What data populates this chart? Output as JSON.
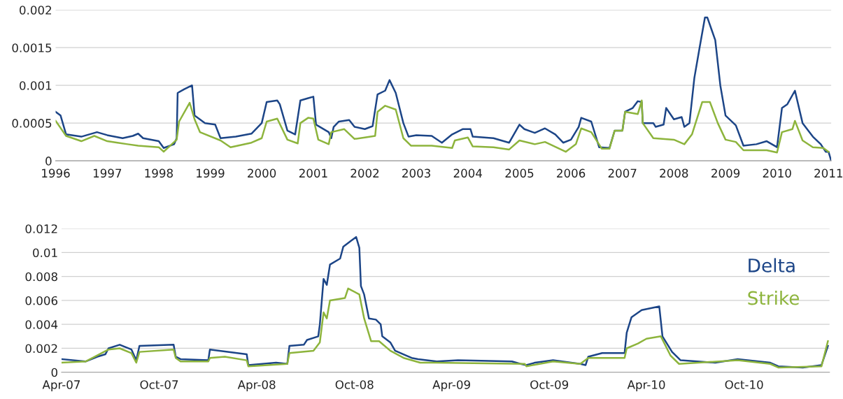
{
  "chart_data": [
    {
      "type": "line",
      "grid": "y",
      "legend": false,
      "xlim": [
        "1996-01-01",
        "2011-01-20"
      ],
      "ylim": [
        0,
        0.002
      ],
      "xticks": [
        {
          "value": "1996-01-01",
          "label": "1996"
        },
        {
          "value": "1997-01-01",
          "label": "1997"
        },
        {
          "value": "1998-01-01",
          "label": "1998"
        },
        {
          "value": "1999-01-01",
          "label": "1999"
        },
        {
          "value": "2000-01-01",
          "label": "2000"
        },
        {
          "value": "2001-01-01",
          "label": "2001"
        },
        {
          "value": "2002-01-01",
          "label": "2002"
        },
        {
          "value": "2003-01-01",
          "label": "2003"
        },
        {
          "value": "2004-01-01",
          "label": "2004"
        },
        {
          "value": "2005-01-01",
          "label": "2005"
        },
        {
          "value": "2006-01-01",
          "label": "2006"
        },
        {
          "value": "2007-01-01",
          "label": "2007"
        },
        {
          "value": "2008-01-01",
          "label": "2008"
        },
        {
          "value": "2009-01-01",
          "label": "2009"
        },
        {
          "value": "2010-01-01",
          "label": "2010"
        },
        {
          "value": "2011-01-01",
          "label": "2011"
        }
      ],
      "yticks": [
        0,
        0.0005,
        0.001,
        0.0015,
        0.002
      ],
      "series": [
        {
          "color": "#1c4587",
          "x": [
            "1996-01-01",
            "1996-02-05",
            "1996-03-15",
            "1996-07-01",
            "1996-10-20",
            "1997-01-01",
            "1997-04-20",
            "1997-07-01",
            "1997-08-08",
            "1997-09-12",
            "1998-01-01",
            "1998-02-05",
            "1998-04-20",
            "1998-05-08",
            "1998-05-15",
            "1998-07-01",
            "1998-08-25",
            "1998-09-12",
            "1998-11-25",
            "1999-02-05",
            "1999-03-15",
            "1999-07-01",
            "1999-10-20",
            "2000-01-01",
            "2000-02-05",
            "2000-04-20",
            "2000-05-08",
            "2000-07-01",
            "2000-08-25",
            "2000-10-01",
            "2000-11-25",
            "2001-01-01",
            "2001-01-20",
            "2001-04-20",
            "2001-05-08",
            "2001-05-25",
            "2001-07-01",
            "2001-09-12",
            "2001-10-20",
            "2002-01-01",
            "2002-02-25",
            "2002-04-01",
            "2002-05-25",
            "2002-06-25",
            "2002-08-08",
            "2002-10-01",
            "2002-11-07",
            "2003-01-01",
            "2003-04-20",
            "2003-07-01",
            "2003-09-12",
            "2003-11-25",
            "2004-01-20",
            "2004-02-05",
            "2004-07-01",
            "2004-10-20",
            "2005-01-01",
            "2005-02-05",
            "2005-04-20",
            "2005-07-01",
            "2005-09-12",
            "2005-11-07",
            "2006-01-01",
            "2006-02-25",
            "2006-03-15",
            "2006-05-25",
            "2006-07-20",
            "2006-10-01",
            "2006-11-07",
            "2007-01-01",
            "2007-01-20",
            "2007-03-15",
            "2007-04-20",
            "2007-05-18",
            "2007-05-25",
            "2007-08-08",
            "2007-08-25",
            "2007-10-20",
            "2007-11-07",
            "2008-01-01",
            "2008-02-25",
            "2008-03-15",
            "2008-04-20",
            "2008-05-25",
            "2008-07-01",
            "2008-08-08",
            "2008-08-25",
            "2008-10-20",
            "2008-11-25",
            "2009-01-01",
            "2009-03-15",
            "2009-05-08",
            "2009-08-08",
            "2009-10-20",
            "2010-01-01",
            "2010-02-05",
            "2010-03-15",
            "2010-05-08",
            "2010-07-01",
            "2010-09-12",
            "2010-11-07",
            "2010-12-12",
            "2011-01-01",
            "2011-01-20"
          ],
          "values": [
            0.00065,
            0.0006,
            0.00035,
            0.00032,
            0.00038,
            0.00034,
            0.0003,
            0.00033,
            0.00036,
            0.0003,
            0.00026,
            0.00017,
            0.00022,
            0.0003,
            0.0009,
            0.00095,
            0.001,
            0.0006,
            0.0005,
            0.00048,
            0.0003,
            0.00032,
            0.00036,
            0.0005,
            0.00078,
            0.0008,
            0.00075,
            0.0004,
            0.00035,
            0.0008,
            0.00083,
            0.00085,
            0.00048,
            0.00038,
            0.0003,
            0.00045,
            0.00052,
            0.00054,
            0.00045,
            0.00042,
            0.00046,
            0.00088,
            0.00093,
            0.00107,
            0.0009,
            0.0005,
            0.00032,
            0.00034,
            0.00033,
            0.00024,
            0.00035,
            0.00042,
            0.00042,
            0.00032,
            0.0003,
            0.00024,
            0.00048,
            0.00042,
            0.00037,
            0.00043,
            0.00035,
            0.00024,
            0.00028,
            0.00045,
            0.00057,
            0.00052,
            0.00018,
            0.00017,
            0.0004,
            0.0004,
            0.00065,
            0.0007,
            0.00079,
            0.00078,
            0.0005,
            0.0005,
            0.00045,
            0.00048,
            0.0007,
            0.00055,
            0.00058,
            0.00045,
            0.0005,
            0.0011,
            0.0015,
            0.0019,
            0.0019,
            0.0016,
            0.001,
            0.0006,
            0.00047,
            0.0002,
            0.00022,
            0.00026,
            0.00018,
            0.0007,
            0.00075,
            0.00093,
            0.0005,
            0.00032,
            0.00022,
            0.00012,
            0.00012,
            0
          ]
        },
        {
          "color": "#8db43c",
          "x": [
            "1996-01-01",
            "1996-03-15",
            "1996-07-01",
            "1996-10-01",
            "1997-01-01",
            "1997-03-15",
            "1997-05-25",
            "1997-08-08",
            "1998-01-01",
            "1998-02-05",
            "1998-05-08",
            "1998-05-25",
            "1998-08-08",
            "1998-09-12",
            "1998-10-20",
            "1999-03-15",
            "1999-05-25",
            "1999-10-20",
            "2000-01-01",
            "2000-02-05",
            "2000-04-20",
            "2000-07-01",
            "2000-09-12",
            "2000-10-01",
            "2000-11-25",
            "2001-01-01",
            "2001-02-05",
            "2001-04-20",
            "2001-05-08",
            "2001-08-08",
            "2001-10-20",
            "2002-01-01",
            "2002-03-15",
            "2002-04-01",
            "2002-05-25",
            "2002-08-08",
            "2002-10-01",
            "2002-11-25",
            "2003-04-20",
            "2003-09-12",
            "2003-10-01",
            "2004-01-01",
            "2004-02-05",
            "2004-07-01",
            "2004-10-20",
            "2005-01-01",
            "2005-04-20",
            "2005-07-01",
            "2005-11-25",
            "2006-02-05",
            "2006-03-15",
            "2006-05-25",
            "2006-08-08",
            "2006-10-01",
            "2006-11-07",
            "2007-01-01",
            "2007-01-20",
            "2007-04-20",
            "2007-05-18",
            "2007-05-25",
            "2007-08-08",
            "2008-01-01",
            "2008-03-15",
            "2008-05-08",
            "2008-07-20",
            "2008-09-12",
            "2008-11-07",
            "2009-01-01",
            "2009-03-15",
            "2009-05-08",
            "2009-10-20",
            "2010-01-01",
            "2010-02-05",
            "2010-04-20",
            "2010-05-08",
            "2010-07-01",
            "2010-09-12",
            "2010-11-25",
            "2011-01-01"
          ],
          "values": [
            0.00053,
            0.00033,
            0.00026,
            0.00033,
            0.00026,
            0.00024,
            0.00022,
            0.0002,
            0.00018,
            0.00012,
            0.00028,
            0.00052,
            0.00077,
            0.00055,
            0.00038,
            0.00027,
            0.00018,
            0.00024,
            0.0003,
            0.00052,
            0.00056,
            0.00028,
            0.00023,
            0.0005,
            0.00057,
            0.00056,
            0.00028,
            0.00022,
            0.00038,
            0.00042,
            0.00029,
            0.00031,
            0.00033,
            0.00065,
            0.00073,
            0.00068,
            0.0003,
            0.0002,
            0.0002,
            0.00017,
            0.00027,
            0.00031,
            0.00019,
            0.00018,
            0.00015,
            0.00027,
            0.00022,
            0.00025,
            0.00012,
            0.00022,
            0.00043,
            0.00038,
            0.00016,
            0.00016,
            0.0004,
            0.0004,
            0.00065,
            0.00062,
            0.0008,
            0.0005,
            0.0003,
            0.00028,
            0.00022,
            0.00035,
            0.00078,
            0.00078,
            0.0005,
            0.00028,
            0.00025,
            0.00014,
            0.00014,
            0.00011,
            0.00038,
            0.00042,
            0.00053,
            0.00027,
            0.00018,
            0.00017,
            0.00012
          ]
        }
      ]
    },
    {
      "type": "line",
      "grid": "y",
      "legend": "top right",
      "xlim": [
        "2007-04-01",
        "2011-03-10"
      ],
      "ylim": [
        0,
        0.012
      ],
      "xticks": [
        {
          "value": "2007-04-01",
          "label": "Apr-07"
        },
        {
          "value": "2007-10-01",
          "label": "Oct-07"
        },
        {
          "value": "2008-04-01",
          "label": "Apr-08"
        },
        {
          "value": "2008-10-01",
          "label": "Oct-08"
        },
        {
          "value": "2009-04-01",
          "label": "Apr-09"
        },
        {
          "value": "2009-10-01",
          "label": "Oct-09"
        },
        {
          "value": "2010-04-01",
          "label": "Apr-10"
        },
        {
          "value": "2010-10-01",
          "label": "Oct-10"
        }
      ],
      "yticks": [
        0,
        0.002,
        0.004,
        0.006,
        0.008,
        0.01,
        0.012
      ],
      "series": [
        {
          "name": "Delta",
          "color": "#1c4587",
          "x": [
            "2007-04-01",
            "2007-05-16",
            "2007-06-07",
            "2007-06-22",
            "2007-06-28",
            "2007-07-19",
            "2007-08-10",
            "2007-08-19",
            "2007-08-25",
            "2007-10-28",
            "2007-11-01",
            "2007-11-10",
            "2008-01-01",
            "2008-01-04",
            "2008-03-13",
            "2008-03-16",
            "2008-05-07",
            "2008-05-28",
            "2008-06-01",
            "2008-06-28",
            "2008-07-04",
            "2008-07-25",
            "2008-07-28",
            "2008-08-04",
            "2008-08-10",
            "2008-08-16",
            "2008-09-04",
            "2008-09-10",
            "2008-09-25",
            "2008-10-04",
            "2008-10-10",
            "2008-10-13",
            "2008-10-19",
            "2008-10-28",
            "2008-11-10",
            "2008-11-19",
            "2008-11-22",
            "2008-12-07",
            "2008-12-16",
            "2009-01-16",
            "2009-01-28",
            "2009-03-04",
            "2009-04-13",
            "2009-07-23",
            "2009-08-08",
            "2009-08-19",
            "2009-09-04",
            "2009-10-08",
            "2009-11-28",
            "2009-12-08",
            "2009-12-13",
            "2010-01-08",
            "2010-02-19",
            "2010-02-23",
            "2010-03-04",
            "2010-03-23",
            "2010-04-25",
            "2010-05-01",
            "2010-05-19",
            "2010-06-04",
            "2010-08-08",
            "2010-09-19",
            "2010-11-19",
            "2010-12-04",
            "2011-01-19",
            "2011-02-23",
            "2011-03-07"
          ],
          "values": [
            0.0011,
            0.0009,
            0.0013,
            0.0015,
            0.002,
            0.0023,
            0.0019,
            0.001,
            0.0022,
            0.0023,
            0.0013,
            0.0011,
            0.001,
            0.0019,
            0.0015,
            0.0006,
            0.0008,
            0.0007,
            0.0022,
            0.0023,
            0.0027,
            0.003,
            0.004,
            0.0078,
            0.0073,
            0.009,
            0.0095,
            0.0105,
            0.011,
            0.0113,
            0.0104,
            0.0072,
            0.0065,
            0.0045,
            0.0044,
            0.004,
            0.003,
            0.0025,
            0.0018,
            0.0012,
            0.0011,
            0.0009,
            0.001,
            0.0009,
            0.0007,
            0.0006,
            0.0008,
            0.001,
            0.0007,
            0.0006,
            0.0013,
            0.0016,
            0.0016,
            0.0033,
            0.0046,
            0.0052,
            0.0055,
            0.003,
            0.0017,
            0.001,
            0.0008,
            0.0011,
            0.0008,
            0.0005,
            0.0004,
            0.0006,
            0.0022
          ]
        },
        {
          "name": "Strike",
          "color": "#8db43c",
          "x": [
            "2007-04-01",
            "2007-05-16",
            "2007-06-28",
            "2007-07-19",
            "2007-08-10",
            "2007-08-19",
            "2007-08-25",
            "2007-10-28",
            "2007-11-01",
            "2007-11-10",
            "2008-01-01",
            "2008-01-04",
            "2008-02-01",
            "2008-03-13",
            "2008-03-16",
            "2008-05-28",
            "2008-06-01",
            "2008-07-16",
            "2008-07-28",
            "2008-08-04",
            "2008-08-10",
            "2008-08-16",
            "2008-09-13",
            "2008-09-19",
            "2008-10-10",
            "2008-10-19",
            "2008-11-01",
            "2008-11-16",
            "2008-12-07",
            "2009-01-01",
            "2009-02-01",
            "2009-03-01",
            "2009-08-16",
            "2009-08-19",
            "2009-10-08",
            "2009-11-28",
            "2009-12-13",
            "2010-02-19",
            "2010-02-23",
            "2010-03-16",
            "2010-04-01",
            "2010-04-28",
            "2010-05-16",
            "2010-06-01",
            "2010-09-19",
            "2010-11-19",
            "2010-12-04",
            "2011-02-23",
            "2011-03-07"
          ],
          "values": [
            0.0008,
            0.0009,
            0.0019,
            0.002,
            0.0016,
            0.0008,
            0.0017,
            0.0019,
            0.0012,
            0.0009,
            0.0009,
            0.0012,
            0.0013,
            0.001,
            0.0005,
            0.0007,
            0.0016,
            0.0018,
            0.0025,
            0.005,
            0.0045,
            0.006,
            0.0062,
            0.007,
            0.0065,
            0.0045,
            0.0026,
            0.0026,
            0.0018,
            0.0012,
            0.0008,
            0.0008,
            0.0007,
            0.0005,
            0.0009,
            0.0007,
            0.0012,
            0.0012,
            0.002,
            0.0024,
            0.0028,
            0.003,
            0.0014,
            0.0007,
            0.001,
            0.0007,
            0.0004,
            0.0005,
            0.0026
          ]
        }
      ]
    }
  ]
}
